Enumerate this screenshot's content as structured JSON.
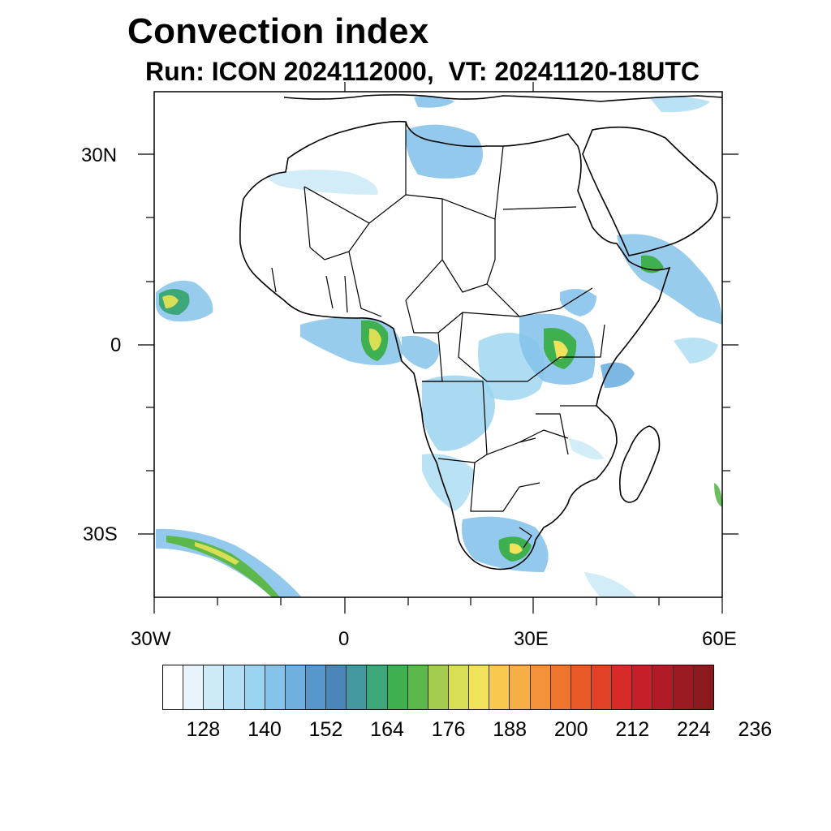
{
  "header": {
    "title": "Convection index",
    "subtitle": "Run: ICON 2024112000,  VT: 20241120-18UTC"
  },
  "map": {
    "region": "Africa",
    "lon_range": [
      -30,
      60
    ],
    "lat_range": [
      -40,
      40
    ],
    "lat_ticks": [
      {
        "label": "30N",
        "value": 30
      },
      {
        "label": "0",
        "value": 0
      },
      {
        "label": "30S",
        "value": -30
      }
    ],
    "lon_ticks": [
      {
        "label": "30W",
        "value": -30
      },
      {
        "label": "0",
        "value": 0
      },
      {
        "label": "30E",
        "value": 30
      },
      {
        "label": "60E",
        "value": 60
      }
    ]
  },
  "colorbar": {
    "colors": [
      "#ffffff",
      "#e8f4fb",
      "#cdeaf7",
      "#b3dff4",
      "#9ad4f0",
      "#86c3ea",
      "#6fb0e0",
      "#5797cc",
      "#4a86b8",
      "#45989f",
      "#3da779",
      "#3fb04f",
      "#5cb84a",
      "#a5cc4e",
      "#d8df55",
      "#f0e35b",
      "#f8c84f",
      "#f6ae47",
      "#f39238",
      "#ef742c",
      "#ea5a28",
      "#e24128",
      "#d82a29",
      "#c51f2a",
      "#b01b27",
      "#9c1b22",
      "#8a1a1c"
    ],
    "labels": [
      "128",
      "140",
      "152",
      "164",
      "176",
      "188",
      "200",
      "212",
      "224",
      "236"
    ]
  }
}
